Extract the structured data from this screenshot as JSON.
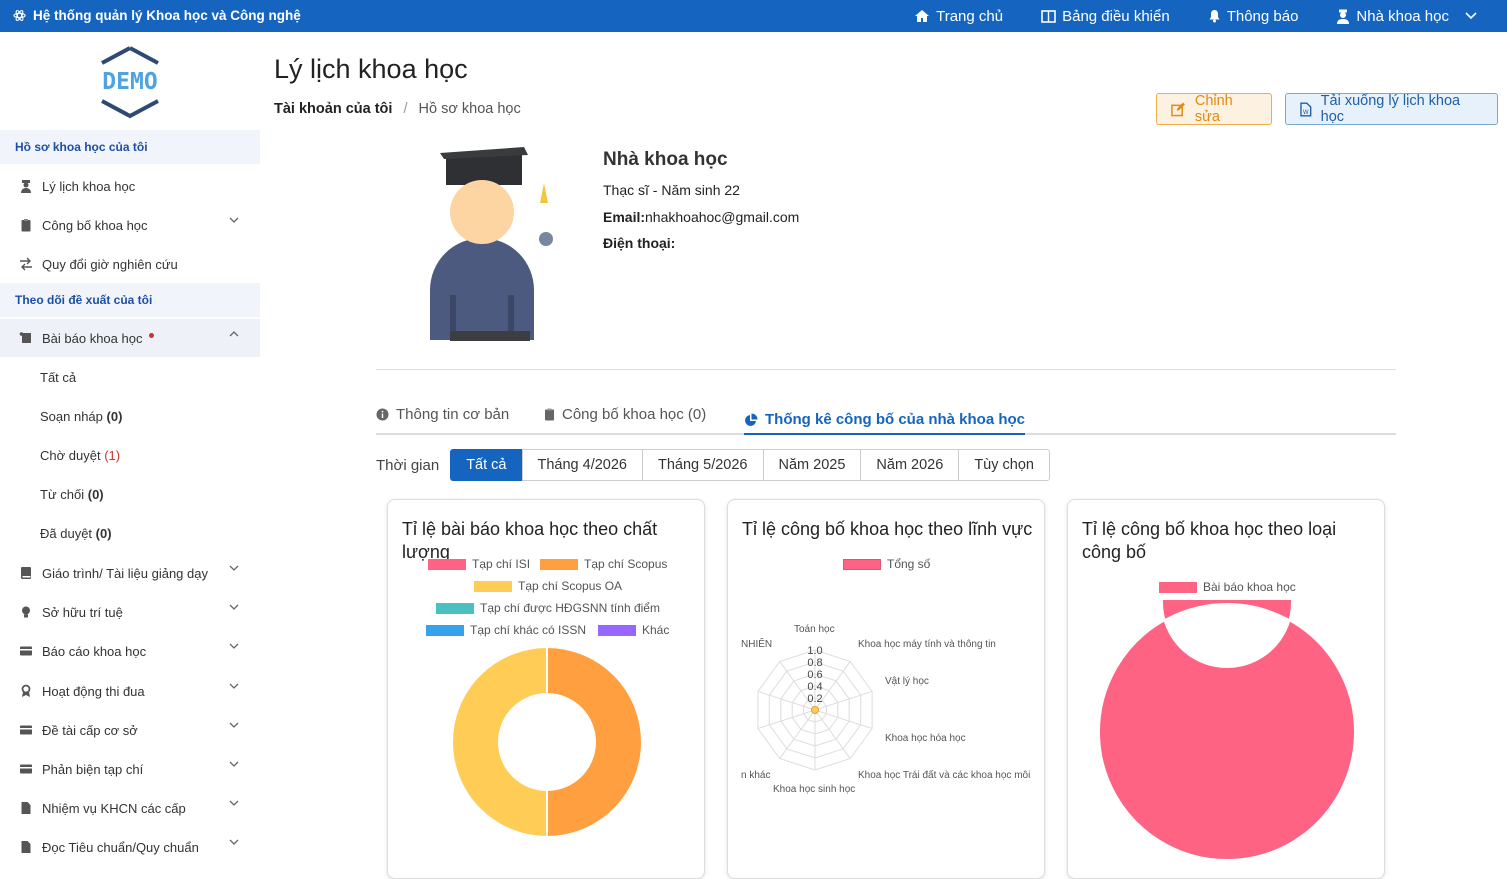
{
  "topbar": {
    "title": "Hệ thống quản lý Khoa học và Công nghệ",
    "nav": [
      {
        "label": "Trang chủ",
        "icon": "home-icon"
      },
      {
        "label": "Bảng điều khiển",
        "icon": "dashboard-icon"
      },
      {
        "label": "Thông báo",
        "icon": "bell-icon"
      },
      {
        "label": "Nhà khoa học",
        "icon": "user-icon"
      }
    ]
  },
  "sidebar": {
    "logo": "DEMO",
    "section1": "Hồ sơ khoa học của tôi",
    "item_cv": "Lý lịch khoa học",
    "item_publish": "Công bố khoa học",
    "item_convert": "Quy đổi giờ nghiên cứu",
    "section2": "Theo dõi đề xuất của tôi",
    "item_articles": "Bài báo khoa học",
    "sub": {
      "all": "Tất cả",
      "draft": "Soạn nháp",
      "draft_count": "(0)",
      "pending": "Chờ duyệt",
      "pending_count": "(1)",
      "rejected": "Từ chối",
      "rejected_count": "(0)",
      "approved": "Đã duyệt",
      "approved_count": "(0)"
    },
    "items": [
      "Giáo trình/ Tài liệu giảng dạy",
      "Sở hữu trí tuệ",
      "Báo cáo khoa học",
      "Hoạt động thi đua",
      "Đề tài cấp cơ sở",
      "Phản biện tạp chí",
      "Nhiệm vụ KHCN các cấp",
      "Đọc Tiêu chuẩn/Quy chuẩn"
    ]
  },
  "page": {
    "title": "Lý lịch khoa học",
    "crumb_root": "Tài khoản của tôi",
    "crumb_sep": "/",
    "crumb_current": "Hồ sơ khoa học",
    "edit": "Chỉnh sửa",
    "download": "Tải xuống lý lịch khoa học"
  },
  "profile": {
    "name": "Nhà khoa học",
    "degree": "Thạc sĩ  - Năm sinh 22",
    "email_label": "Email:",
    "email": "nhakhoahoc@gmail.com",
    "phone_label": "Điện thoại:"
  },
  "tabs": [
    "Thông tin cơ bản",
    "Công bố khoa học (0)",
    "Thống kê công bố của nhà khoa học"
  ],
  "filter": {
    "label": "Thời gian",
    "options": [
      "Tất cả",
      "Tháng 4/2026",
      "Tháng 5/2026",
      "Năm 2025",
      "Năm 2026",
      "Tùy chọn"
    ],
    "selected": "Tất cả"
  },
  "colors": {
    "primary": "#1565c0",
    "isi": "#ff6384",
    "scopus": "#ff9f40",
    "scopus_oa": "#ffcd56",
    "hdgsnn": "#4bc0c0",
    "other_issn": "#36a2eb",
    "other": "#9966ff"
  },
  "chart_data": [
    {
      "type": "pie",
      "title": "Tỉ lệ bài báo khoa học theo chất lượng",
      "labels": [
        "Tạp chí ISI",
        "Tạp chí Scopus",
        "Tạp chí Scopus OA",
        "Tạp chí được HĐGSNN tính điểm",
        "Tạp chí khác có ISSN",
        "Khác"
      ],
      "values": [
        0,
        1,
        1,
        0,
        0,
        0
      ]
    },
    {
      "type": "radar",
      "title": "Tỉ lệ công bố khoa học theo lĩnh vực",
      "series": [
        {
          "name": "Tổng số",
          "values": [
            0,
            0,
            0,
            0,
            0,
            0,
            0,
            0,
            0,
            0
          ]
        }
      ],
      "labels": [
        "Toán học",
        "Khoa học máy tính và thông tin",
        "Vật lý học",
        "Khoa học hóa học",
        "Khoa học Trái đất và các khoa học môi",
        "Khoa học sinh học",
        "n khác",
        "",
        "",
        "NHIÊN"
      ],
      "ticks": [
        "1.0",
        "0.8",
        "0.6",
        "0.4",
        "0.2"
      ],
      "ylim": [
        0,
        1
      ]
    },
    {
      "type": "pie",
      "title": "Tỉ lệ công bố khoa học theo loại công bố",
      "labels": [
        "Bài báo khoa học"
      ],
      "values": [
        1
      ]
    }
  ]
}
